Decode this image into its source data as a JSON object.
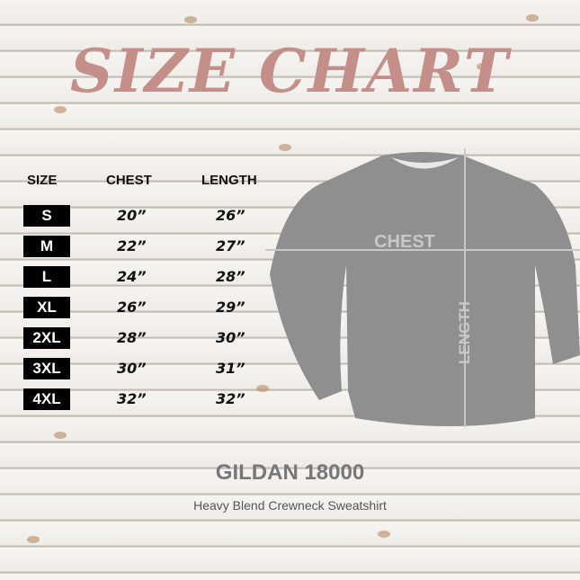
{
  "title": "SIZE CHART",
  "headers": {
    "size": "SIZE",
    "chest": "CHEST",
    "length": "LENGTH"
  },
  "rows": [
    {
      "size": "S",
      "chest": "20”",
      "length": "26”"
    },
    {
      "size": "M",
      "chest": "22”",
      "length": "27”"
    },
    {
      "size": "L",
      "chest": "24”",
      "length": "28”"
    },
    {
      "size": "XL",
      "chest": "26”",
      "length": "29”"
    },
    {
      "size": "2XL",
      "chest": "28”",
      "length": "30”"
    },
    {
      "size": "3XL",
      "chest": "30”",
      "length": "31”"
    },
    {
      "size": "4XL",
      "chest": "32”",
      "length": "32”"
    }
  ],
  "garment": {
    "chest_label": "CHEST",
    "length_label": "LENGTH",
    "color": "#8f8f8f"
  },
  "product": {
    "model": "GILDAN 18000",
    "description": "Heavy Blend Crewneck Sweatshirt"
  },
  "colors": {
    "title": "#c48f89",
    "badge": "#000000"
  }
}
